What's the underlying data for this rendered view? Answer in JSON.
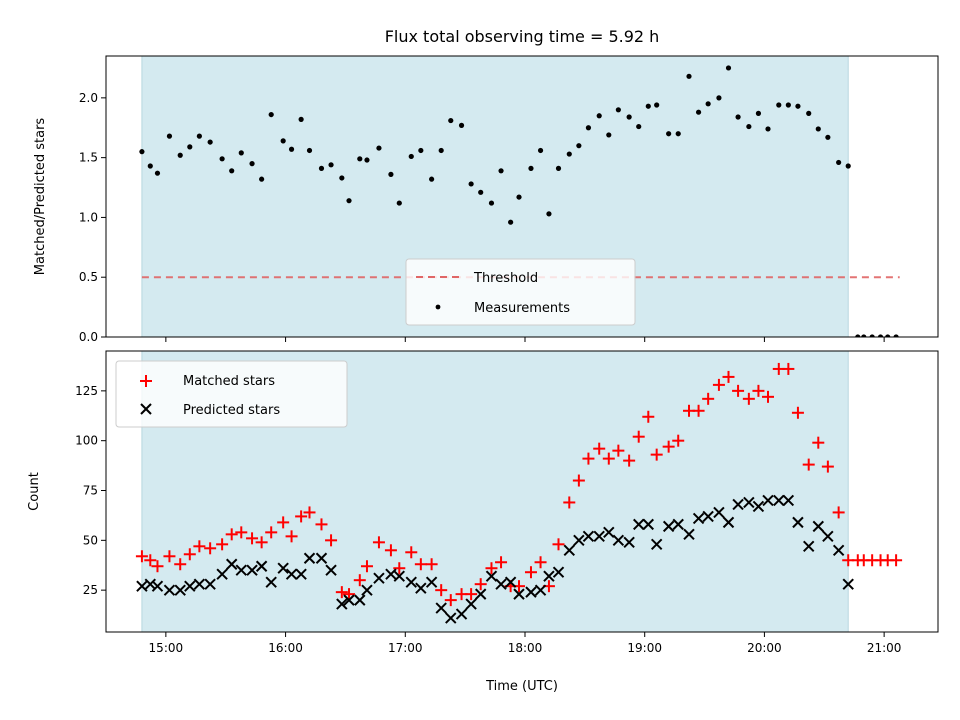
{
  "figure": {
    "title": "Flux total observing time = 5.92 h",
    "xlabel": "Time (UTC)"
  },
  "chart_data": [
    {
      "type": "scatter",
      "ylabel": "Matched/Predicted stars",
      "xlim": [
        14.5,
        21.45
      ],
      "ylim": [
        0,
        2.35
      ],
      "shaded_span": [
        14.8,
        20.7
      ],
      "shade_color": "#d4eaf0",
      "yticks": [
        0.0,
        0.5,
        1.0,
        1.5,
        2.0
      ],
      "threshold": {
        "name": "Threshold",
        "y": 0.5,
        "x_range": [
          14.8,
          21.13
        ],
        "color": "#e06666"
      },
      "legend_placement": "lower-center",
      "series": [
        {
          "name": "Measurements",
          "color": "#000000",
          "x": [
            14.8,
            14.87,
            14.93,
            15.03,
            15.12,
            15.2,
            15.28,
            15.37,
            15.47,
            15.55,
            15.63,
            15.72,
            15.8,
            15.88,
            15.98,
            16.05,
            16.13,
            16.2,
            16.3,
            16.38,
            16.47,
            16.53,
            16.62,
            16.68,
            16.78,
            16.88,
            16.95,
            17.05,
            17.13,
            17.22,
            17.3,
            17.38,
            17.47,
            17.55,
            17.63,
            17.72,
            17.8,
            17.88,
            17.95,
            18.05,
            18.13,
            18.2,
            18.28,
            18.37,
            18.45,
            18.53,
            18.62,
            18.7,
            18.78,
            18.87,
            18.95,
            19.03,
            19.1,
            19.2,
            19.28,
            19.37,
            19.45,
            19.53,
            19.62,
            19.7,
            19.78,
            19.87,
            19.95,
            20.03,
            20.12,
            20.2,
            20.28,
            20.37,
            20.45,
            20.53,
            20.62,
            20.7,
            20.78,
            20.83,
            20.9,
            20.97,
            21.03,
            21.1
          ],
          "y": [
            1.55,
            1.43,
            1.37,
            1.68,
            1.52,
            1.59,
            1.68,
            1.63,
            1.49,
            1.39,
            1.54,
            1.45,
            1.32,
            1.86,
            1.64,
            1.57,
            1.82,
            1.56,
            1.41,
            1.44,
            1.33,
            1.14,
            1.49,
            1.48,
            1.58,
            1.36,
            1.12,
            1.51,
            1.56,
            1.32,
            1.56,
            1.81,
            1.77,
            1.28,
            1.21,
            1.12,
            1.39,
            0.96,
            1.17,
            1.41,
            1.56,
            1.03,
            1.41,
            1.53,
            1.6,
            1.75,
            1.85,
            1.69,
            1.9,
            1.84,
            1.76,
            1.93,
            1.94,
            1.7,
            1.7,
            2.18,
            1.88,
            1.95,
            2.0,
            2.25,
            1.84,
            1.76,
            1.87,
            1.74,
            1.94,
            1.94,
            1.93,
            1.87,
            1.74,
            1.67,
            1.46,
            1.43,
            0.0,
            0.0,
            0.0,
            0.0,
            0.0,
            0.0
          ]
        }
      ]
    },
    {
      "type": "scatter",
      "ylabel": "Count",
      "xlim": [
        14.5,
        21.45
      ],
      "ylim": [
        4,
        145
      ],
      "shaded_span": [
        14.8,
        20.7
      ],
      "shade_color": "#d4eaf0",
      "yticks": [
        25,
        50,
        75,
        100,
        125
      ],
      "xticks": [
        15,
        16,
        17,
        18,
        19,
        20,
        21
      ],
      "xtick_labels": [
        "15:00",
        "16:00",
        "17:00",
        "18:00",
        "19:00",
        "20:00",
        "21:00"
      ],
      "legend_placement": "top-left",
      "series": [
        {
          "name": "Matched stars",
          "marker": "plus",
          "color": "#ff0000",
          "x": [
            14.8,
            14.87,
            14.93,
            15.03,
            15.12,
            15.2,
            15.28,
            15.37,
            15.47,
            15.55,
            15.63,
            15.72,
            15.8,
            15.88,
            15.98,
            16.05,
            16.13,
            16.2,
            16.3,
            16.38,
            16.47,
            16.53,
            16.62,
            16.68,
            16.78,
            16.88,
            16.95,
            17.05,
            17.13,
            17.22,
            17.3,
            17.38,
            17.47,
            17.55,
            17.63,
            17.72,
            17.8,
            17.88,
            17.95,
            18.05,
            18.13,
            18.2,
            18.28,
            18.37,
            18.45,
            18.53,
            18.62,
            18.7,
            18.78,
            18.87,
            18.95,
            19.03,
            19.1,
            19.2,
            19.28,
            19.37,
            19.45,
            19.53,
            19.62,
            19.7,
            19.78,
            19.87,
            19.95,
            20.03,
            20.12,
            20.2,
            20.28,
            20.37,
            20.45,
            20.53,
            20.62,
            20.7,
            20.78,
            20.83,
            20.9,
            20.97,
            21.03,
            21.1
          ],
          "y": [
            42,
            40,
            37,
            42,
            38,
            43,
            47,
            46,
            48,
            53,
            54,
            51,
            49,
            54,
            59,
            52,
            62,
            64,
            58,
            50,
            24,
            23,
            30,
            37,
            49,
            45,
            36,
            44,
            38,
            38,
            25,
            20,
            23,
            23,
            28,
            36,
            39,
            27,
            27,
            34,
            39,
            27,
            48,
            69,
            80,
            91,
            96,
            91,
            95,
            90,
            102,
            112,
            93,
            97,
            100,
            115,
            115,
            121,
            128,
            132,
            125,
            121,
            125,
            122,
            136,
            136,
            114,
            88,
            99,
            87,
            64,
            40,
            40,
            40,
            40,
            40,
            40,
            40
          ]
        },
        {
          "name": "Predicted stars",
          "marker": "x",
          "color": "#000000",
          "x": [
            14.8,
            14.87,
            14.93,
            15.03,
            15.12,
            15.2,
            15.28,
            15.37,
            15.47,
            15.55,
            15.63,
            15.72,
            15.8,
            15.88,
            15.98,
            16.05,
            16.13,
            16.2,
            16.3,
            16.38,
            16.47,
            16.53,
            16.62,
            16.68,
            16.78,
            16.88,
            16.95,
            17.05,
            17.13,
            17.22,
            17.3,
            17.38,
            17.47,
            17.55,
            17.63,
            17.72,
            17.8,
            17.88,
            17.95,
            18.05,
            18.13,
            18.2,
            18.28,
            18.37,
            18.45,
            18.53,
            18.62,
            18.7,
            18.78,
            18.87,
            18.95,
            19.03,
            19.1,
            19.2,
            19.28,
            19.37,
            19.45,
            19.53,
            19.62,
            19.7,
            19.78,
            19.87,
            19.95,
            20.03,
            20.12,
            20.2,
            20.28,
            20.37,
            20.45,
            20.53,
            20.62,
            20.7
          ],
          "y": [
            27,
            28,
            27,
            25,
            25,
            27,
            28,
            28,
            33,
            38,
            35,
            35,
            37,
            29,
            36,
            33,
            33,
            41,
            41,
            35,
            18,
            20,
            20,
            25,
            31,
            33,
            32,
            29,
            26,
            29,
            16,
            11,
            13,
            18,
            23,
            32,
            28,
            29,
            23,
            24,
            25,
            32,
            34,
            45,
            50,
            52,
            52,
            54,
            50,
            49,
            58,
            58,
            48,
            57,
            58,
            53,
            61,
            62,
            64,
            59,
            68,
            69,
            67,
            70,
            70,
            70,
            59,
            47,
            57,
            52,
            45,
            28
          ]
        }
      ]
    }
  ]
}
